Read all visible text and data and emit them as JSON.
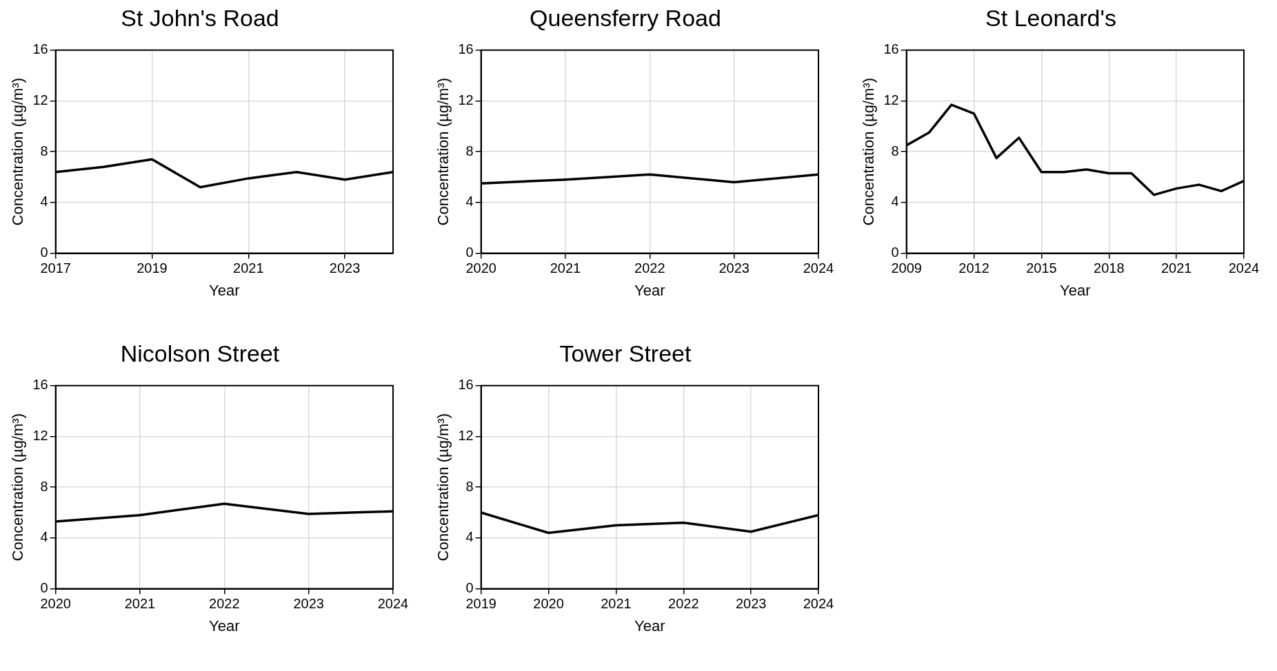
{
  "chart_data": [
    {
      "type": "line",
      "title": "St John's Road",
      "xlabel": "Year",
      "ylabel": "Concentration (µg/m³)",
      "x": [
        2017,
        2018,
        2019,
        2020,
        2021,
        2022,
        2023,
        2024
      ],
      "xlim": [
        2017,
        2024
      ],
      "xticks": [
        2017,
        2019,
        2021,
        2023
      ],
      "ylim": [
        0,
        16
      ],
      "yticks": [
        0,
        4,
        8,
        12,
        16
      ],
      "grid": true,
      "legend": false,
      "series": [
        {
          "color": "#000000",
          "values": [
            6.4,
            6.8,
            7.4,
            5.2,
            5.9,
            6.4,
            5.8,
            6.4
          ]
        }
      ]
    },
    {
      "type": "line",
      "title": "Queensferry Road",
      "xlabel": "Year",
      "ylabel": "Concentration (µg/m³)",
      "x": [
        2020,
        2021,
        2022,
        2023,
        2024
      ],
      "xlim": [
        2020,
        2024
      ],
      "xticks": [
        2020,
        2021,
        2022,
        2023,
        2024
      ],
      "ylim": [
        0,
        16
      ],
      "yticks": [
        0,
        4,
        8,
        12,
        16
      ],
      "grid": true,
      "legend": false,
      "series": [
        {
          "color": "#000000",
          "values": [
            5.5,
            5.8,
            6.2,
            5.6,
            6.2
          ]
        }
      ]
    },
    {
      "type": "line",
      "title": "St Leonard's",
      "xlabel": "Year",
      "ylabel": "Concentration (µg/m³)",
      "x": [
        2009,
        2010,
        2011,
        2012,
        2013,
        2014,
        2015,
        2016,
        2017,
        2018,
        2019,
        2020,
        2021,
        2022,
        2023,
        2024
      ],
      "xlim": [
        2009,
        2024
      ],
      "xticks": [
        2009,
        2012,
        2015,
        2018,
        2021,
        2024
      ],
      "ylim": [
        0,
        16
      ],
      "yticks": [
        0,
        4,
        8,
        12,
        16
      ],
      "grid": true,
      "legend": false,
      "series": [
        {
          "color": "#000000",
          "values": [
            8.5,
            9.5,
            11.7,
            11.0,
            7.5,
            9.1,
            6.4,
            6.4,
            6.6,
            6.3,
            6.3,
            4.6,
            5.1,
            5.4,
            4.9,
            5.7
          ]
        }
      ]
    },
    {
      "type": "line",
      "title": "Nicolson Street",
      "xlabel": "Year",
      "ylabel": "Concentration (µg/m³)",
      "x": [
        2020,
        2021,
        2022,
        2023,
        2024
      ],
      "xlim": [
        2020,
        2024
      ],
      "xticks": [
        2020,
        2021,
        2022,
        2023,
        2024
      ],
      "ylim": [
        0,
        16
      ],
      "yticks": [
        0,
        4,
        8,
        12,
        16
      ],
      "grid": true,
      "legend": false,
      "series": [
        {
          "color": "#000000",
          "values": [
            5.3,
            5.8,
            6.7,
            5.9,
            6.1
          ]
        }
      ]
    },
    {
      "type": "line",
      "title": "Tower Street",
      "xlabel": "Year",
      "ylabel": "Concentration (µg/m³)",
      "x": [
        2019,
        2020,
        2021,
        2022,
        2023,
        2024
      ],
      "xlim": [
        2019,
        2024
      ],
      "xticks": [
        2019,
        2020,
        2021,
        2022,
        2023,
        2024
      ],
      "ylim": [
        0,
        16
      ],
      "yticks": [
        0,
        4,
        8,
        12,
        16
      ],
      "grid": true,
      "legend": false,
      "series": [
        {
          "color": "#000000",
          "values": [
            6.0,
            4.4,
            5.0,
            5.2,
            4.5,
            5.8
          ]
        }
      ]
    }
  ]
}
